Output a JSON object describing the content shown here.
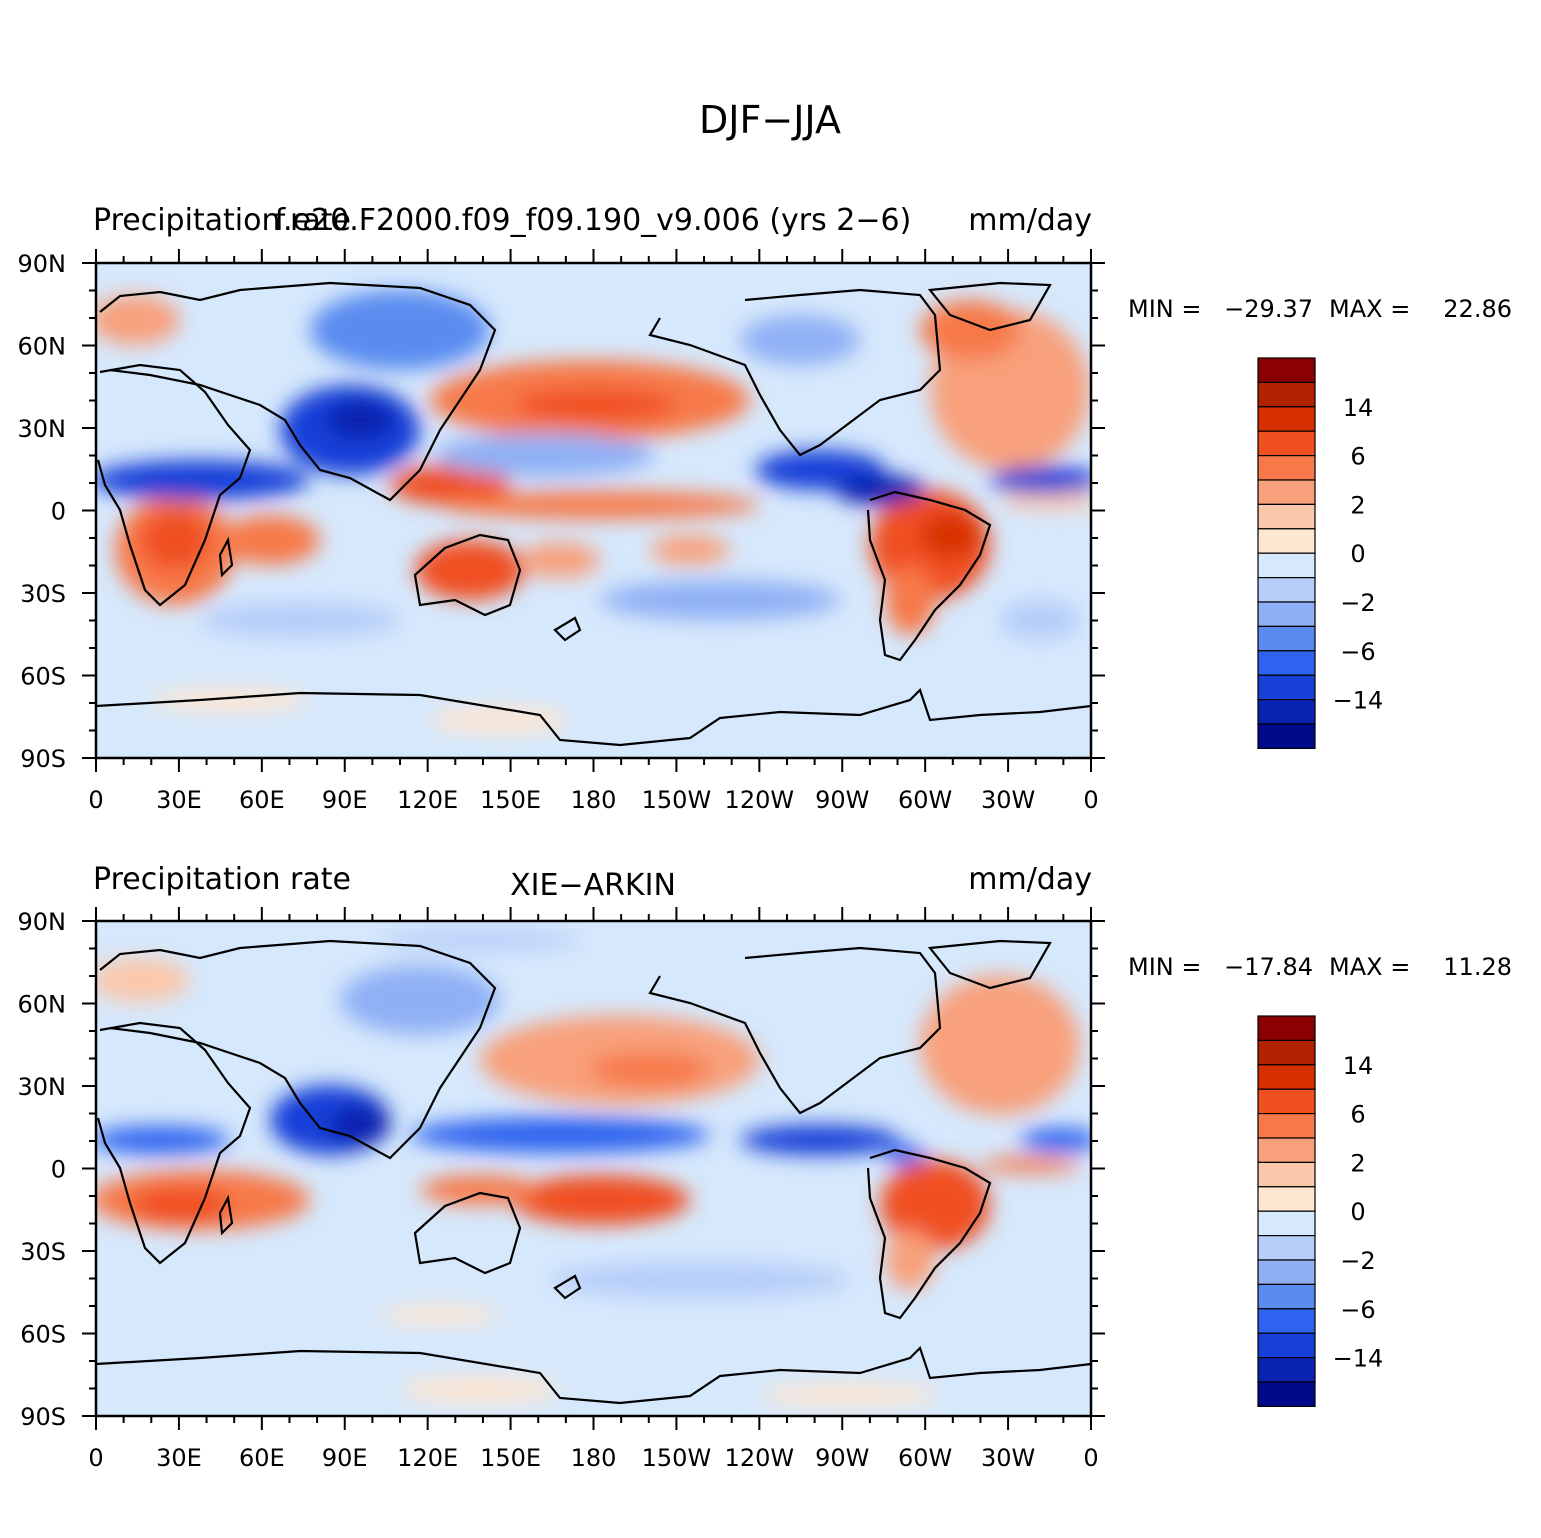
{
  "figure": {
    "title": "DJF−JJA"
  },
  "colorbar": {
    "levels": [
      "14",
      "6",
      "2",
      "0",
      "−2",
      "−6",
      "−14"
    ],
    "colors": [
      "#8b0000",
      "#b22200",
      "#d73000",
      "#f05020",
      "#f7794a",
      "#f8a07c",
      "#fbc7aa",
      "#fde6d2",
      "#d6e8fc",
      "#b6cdf9",
      "#8fb0f5",
      "#5a8cf0",
      "#2f63ef",
      "#1640d8",
      "#0a22b0",
      "#000a8a"
    ]
  },
  "chart_data": [
    {
      "type": "heatmap",
      "left_label": "Precipitation rate",
      "center_label": "f.e20.F2000.f09_f09.190_v9.006 (yrs 2−6)",
      "right_label": "mm/day",
      "stats": {
        "min_label": "MIN =",
        "min": "−29.37",
        "max_label": "MAX =",
        "max": "22.86"
      },
      "x_ticks": [
        "0",
        "30E",
        "60E",
        "90E",
        "120E",
        "150E",
        "180",
        "150W",
        "120W",
        "90W",
        "60W",
        "30W",
        "0"
      ],
      "y_ticks": [
        "90N",
        "60N",
        "30N",
        "0",
        "30S",
        "60S",
        "90S"
      ],
      "xlim": [
        0,
        360
      ],
      "ylim": [
        -90,
        90
      ]
    },
    {
      "type": "heatmap",
      "left_label": "Precipitation rate",
      "center_label": "XIE−ARKIN",
      "right_label": "mm/day",
      "stats": {
        "min_label": "MIN =",
        "min": "−17.84",
        "max_label": "MAX =",
        "max": "11.28"
      },
      "x_ticks": [
        "0",
        "30E",
        "60E",
        "90E",
        "120E",
        "150E",
        "180",
        "150W",
        "120W",
        "90W",
        "60W",
        "30W",
        "0"
      ],
      "y_ticks": [
        "90N",
        "60N",
        "30N",
        "0",
        "30S",
        "60S",
        "90S"
      ],
      "xlim": [
        0,
        360
      ],
      "ylim": [
        -90,
        90
      ]
    }
  ]
}
